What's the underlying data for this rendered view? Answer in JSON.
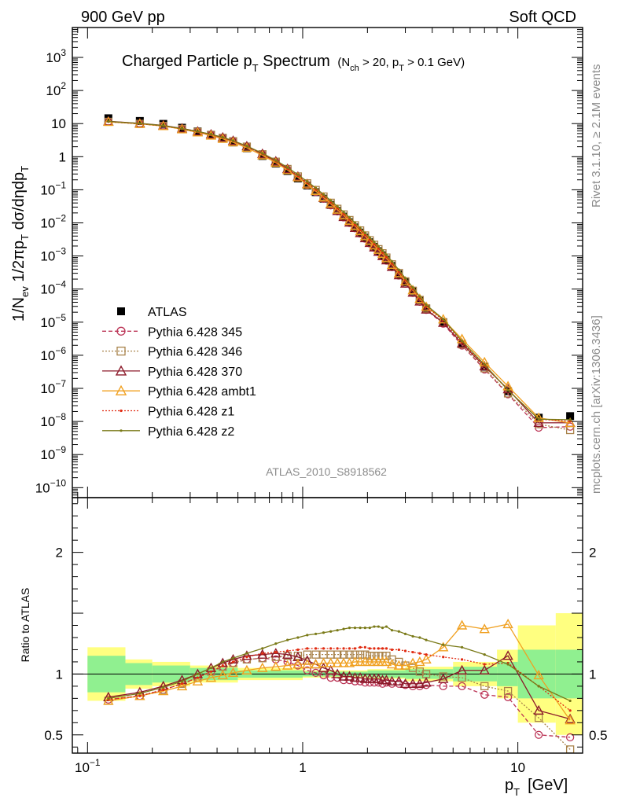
{
  "header": {
    "left": "900 GeV pp",
    "right": "Soft QCD"
  },
  "side": {
    "rivet": "Rivet 3.1.10, ≥ 2.1M events",
    "mcplots": "mcplots.cern.ch [arXiv:1306.3436]"
  },
  "top_title": {
    "main": "Charged Particle p",
    "main_sub": "T",
    "main_tail": " Spectrum",
    "cut": "(N",
    "cut_sub1": "ch",
    "cut_mid": " > 20, p",
    "cut_sub2": "T",
    "cut_tail": " > 0.1 GeV)"
  },
  "analysis_label": "ATLAS_2010_S8918562",
  "ylabel_top": "1/N_ev 1/2πp_T dσ/dηdp_T",
  "ylabel_ratio": "Ratio to ATLAS",
  "xlabel": {
    "p": "p",
    "sub": "T",
    "unit": "[GeV]"
  },
  "legend": [
    {
      "label": "ATLAS",
      "color": "#000000",
      "marker": "square-filled",
      "dash": ""
    },
    {
      "label": "Pythia 6.428 345",
      "color": "#bb3355",
      "marker": "circle",
      "dash": "5,3"
    },
    {
      "label": "Pythia 6.428 346",
      "color": "#a8824a",
      "marker": "square",
      "dash": "2,2"
    },
    {
      "label": "Pythia 6.428 370",
      "color": "#8c1a2a",
      "marker": "triangle",
      "dash": ""
    },
    {
      "label": "Pythia 6.428 ambt1",
      "color": "#f0a020",
      "marker": "triangle",
      "dash": ""
    },
    {
      "label": "Pythia 6.428 z1",
      "color": "#e02a10",
      "marker": "dot",
      "dash": "2,2"
    },
    {
      "label": "Pythia 6.428 z2",
      "color": "#7a7a18",
      "marker": "dot",
      "dash": ""
    }
  ],
  "chart_data": {
    "type": "scatter",
    "title": "Charged Particle p_T Spectrum (N_ch > 20, p_T > 0.1 GeV)",
    "xscale": "log",
    "xlim": [
      0.085,
      20
    ],
    "top_yscale": "log",
    "top_ylim": [
      5e-11,
      8000
    ],
    "ratio_ylim": [
      0.35,
      2.45
    ],
    "x_ticks": [
      {
        "v": 0.1,
        "label": "10",
        "sup": "−1"
      },
      {
        "v": 1,
        "label": "1",
        "sup": ""
      },
      {
        "v": 10,
        "label": "10",
        "sup": ""
      }
    ],
    "y_ticks_top": [
      {
        "v": 1e-10,
        "label": "10",
        "sup": "−10"
      },
      {
        "v": 1e-09,
        "label": "10",
        "sup": "−9"
      },
      {
        "v": 1e-08,
        "label": "10",
        "sup": "−8"
      },
      {
        "v": 1e-07,
        "label": "10",
        "sup": "−7"
      },
      {
        "v": 1e-06,
        "label": "10",
        "sup": "−6"
      },
      {
        "v": 1e-05,
        "label": "10",
        "sup": "−5"
      },
      {
        "v": 0.0001,
        "label": "10",
        "sup": "−4"
      },
      {
        "v": 0.001,
        "label": "10",
        "sup": "−3"
      },
      {
        "v": 0.01,
        "label": "10",
        "sup": "−2"
      },
      {
        "v": 0.1,
        "label": "10",
        "sup": "−1"
      },
      {
        "v": 1,
        "label": "1",
        "sup": ""
      },
      {
        "v": 10,
        "label": "10",
        "sup": ""
      },
      {
        "v": 100,
        "label": "10",
        "sup": "2"
      },
      {
        "v": 1000,
        "label": "10",
        "sup": "3"
      }
    ],
    "y_ticks_ratio": [
      {
        "v": 0.5,
        "label": "0.5"
      },
      {
        "v": 1,
        "label": "1"
      },
      {
        "v": 2,
        "label": "2"
      }
    ],
    "x": [
      0.125,
      0.175,
      0.225,
      0.275,
      0.325,
      0.375,
      0.425,
      0.475,
      0.55,
      0.65,
      0.75,
      0.85,
      0.95,
      1.05,
      1.15,
      1.25,
      1.35,
      1.45,
      1.55,
      1.65,
      1.75,
      1.85,
      1.95,
      2.05,
      2.15,
      2.25,
      2.35,
      2.45,
      2.6,
      2.8,
      3.0,
      3.25,
      3.5,
      3.75,
      4.5,
      5.5,
      7.0,
      9.0,
      12.5,
      17.5
    ],
    "x_bins": [
      0.1,
      0.15,
      0.2,
      0.25,
      0.3,
      0.35,
      0.4,
      0.45,
      0.5,
      0.6,
      0.7,
      0.8,
      0.9,
      1.0,
      1.1,
      1.2,
      1.3,
      1.4,
      1.5,
      1.6,
      1.7,
      1.8,
      1.9,
      2.0,
      2.1,
      2.2,
      2.3,
      2.4,
      2.5,
      2.7,
      2.9,
      3.1,
      3.4,
      3.6,
      4.0,
      5.0,
      6.0,
      8.0,
      10.0,
      15.0,
      20.0
    ],
    "atlas": [
      14.5,
      12.0,
      9.8,
      7.5,
      5.8,
      4.5,
      3.5,
      2.7,
      1.8,
      1.05,
      0.62,
      0.37,
      0.22,
      0.135,
      0.085,
      0.054,
      0.035,
      0.023,
      0.0155,
      0.0105,
      0.0073,
      0.0051,
      0.0036,
      0.0026,
      0.0019,
      0.0014,
      0.00105,
      0.00078,
      0.0005,
      0.00028,
      0.00016,
      8.5e-05,
      4.6e-05,
      2.6e-05,
      1e-05,
      2.2e-06,
      4.5e-07,
      8.2e-08,
      1.3e-08,
      1.45e-08
    ],
    "band_x": [
      0.1,
      0.15,
      0.2,
      0.3,
      0.5,
      1.0,
      2.0,
      3.0,
      5.0,
      8.0,
      10.0,
      15.0,
      20.0
    ],
    "band_green_lo": [
      0.85,
      0.91,
      0.93,
      0.95,
      0.97,
      0.98,
      0.97,
      0.96,
      0.94,
      0.9,
      0.8,
      0.8
    ],
    "band_green_hi": [
      1.15,
      1.09,
      1.07,
      1.05,
      1.03,
      1.02,
      1.03,
      1.04,
      1.06,
      1.1,
      1.2,
      1.2
    ],
    "band_yellow_lo": [
      0.78,
      0.88,
      0.9,
      0.93,
      0.95,
      0.97,
      0.96,
      0.94,
      0.9,
      0.8,
      0.6,
      0.5
    ],
    "band_yellow_hi": [
      1.22,
      1.12,
      1.1,
      1.07,
      1.05,
      1.03,
      1.04,
      1.06,
      1.1,
      1.2,
      1.4,
      1.5
    ],
    "series": [
      {
        "name": "Pythia 6.428 345",
        "ratio": [
          0.79,
          0.82,
          0.87,
          0.92,
          0.97,
          1.02,
          1.06,
          1.09,
          1.12,
          1.13,
          1.12,
          1.1,
          1.07,
          1.03,
          1.01,
          0.99,
          0.97,
          0.97,
          0.95,
          0.95,
          0.94,
          0.94,
          0.93,
          0.93,
          0.93,
          0.93,
          0.92,
          0.93,
          0.92,
          0.92,
          0.91,
          0.9,
          0.9,
          0.91,
          0.9,
          0.9,
          0.83,
          0.81,
          0.5,
          0.48
        ]
      },
      {
        "name": "Pythia 6.428 346",
        "ratio": [
          0.78,
          0.82,
          0.87,
          0.92,
          0.97,
          1.02,
          1.06,
          1.09,
          1.12,
          1.13,
          1.14,
          1.15,
          1.15,
          1.16,
          1.16,
          1.16,
          1.16,
          1.16,
          1.16,
          1.16,
          1.16,
          1.16,
          1.16,
          1.15,
          1.15,
          1.15,
          1.15,
          1.15,
          1.12,
          1.1,
          1.07,
          1.05,
          1.02,
          1.0,
          0.98,
          0.97,
          0.9,
          0.86,
          0.64,
          0.38
        ]
      },
      {
        "name": "Pythia 6.428 370",
        "ratio": [
          0.81,
          0.85,
          0.9,
          0.95,
          1.0,
          1.05,
          1.09,
          1.12,
          1.15,
          1.16,
          1.17,
          1.16,
          1.14,
          1.11,
          1.08,
          1.05,
          1.03,
          1.0,
          0.98,
          0.98,
          0.97,
          0.97,
          0.96,
          0.96,
          0.96,
          0.96,
          0.95,
          0.95,
          0.94,
          0.94,
          0.92,
          0.92,
          0.92,
          0.93,
          0.96,
          1.03,
          1.03,
          1.15,
          0.7,
          0.63
        ]
      },
      {
        "name": "Pythia 6.428 ambt1",
        "ratio": [
          0.78,
          0.82,
          0.86,
          0.9,
          0.94,
          0.97,
          0.99,
          1.01,
          1.03,
          1.05,
          1.06,
          1.07,
          1.08,
          1.08,
          1.08,
          1.09,
          1.09,
          1.09,
          1.09,
          1.09,
          1.1,
          1.1,
          1.1,
          1.1,
          1.1,
          1.1,
          1.1,
          1.1,
          1.08,
          1.07,
          1.07,
          1.09,
          1.1,
          1.12,
          1.22,
          1.4,
          1.37,
          1.41,
          0.99,
          0.62
        ]
      },
      {
        "name": "Pythia 6.428 z1",
        "ratio": [
          0.79,
          0.82,
          0.87,
          0.92,
          0.97,
          1.02,
          1.07,
          1.1,
          1.14,
          1.17,
          1.18,
          1.19,
          1.2,
          1.21,
          1.21,
          1.21,
          1.21,
          1.21,
          1.21,
          1.21,
          1.21,
          1.22,
          1.22,
          1.21,
          1.21,
          1.21,
          1.21,
          1.21,
          1.2,
          1.2,
          1.19,
          1.18,
          1.17,
          1.16,
          1.14,
          1.12,
          1.08,
          1.09,
          0.9,
          0.7
        ]
      },
      {
        "name": "Pythia 6.428 z2",
        "ratio": [
          0.8,
          0.84,
          0.89,
          0.94,
          1.0,
          1.05,
          1.1,
          1.13,
          1.17,
          1.21,
          1.25,
          1.28,
          1.3,
          1.32,
          1.33,
          1.34,
          1.35,
          1.36,
          1.37,
          1.38,
          1.38,
          1.38,
          1.38,
          1.38,
          1.39,
          1.39,
          1.38,
          1.39,
          1.36,
          1.35,
          1.33,
          1.31,
          1.3,
          1.28,
          1.24,
          1.22,
          1.16,
          1.08,
          0.9,
          0.78
        ]
      }
    ]
  }
}
